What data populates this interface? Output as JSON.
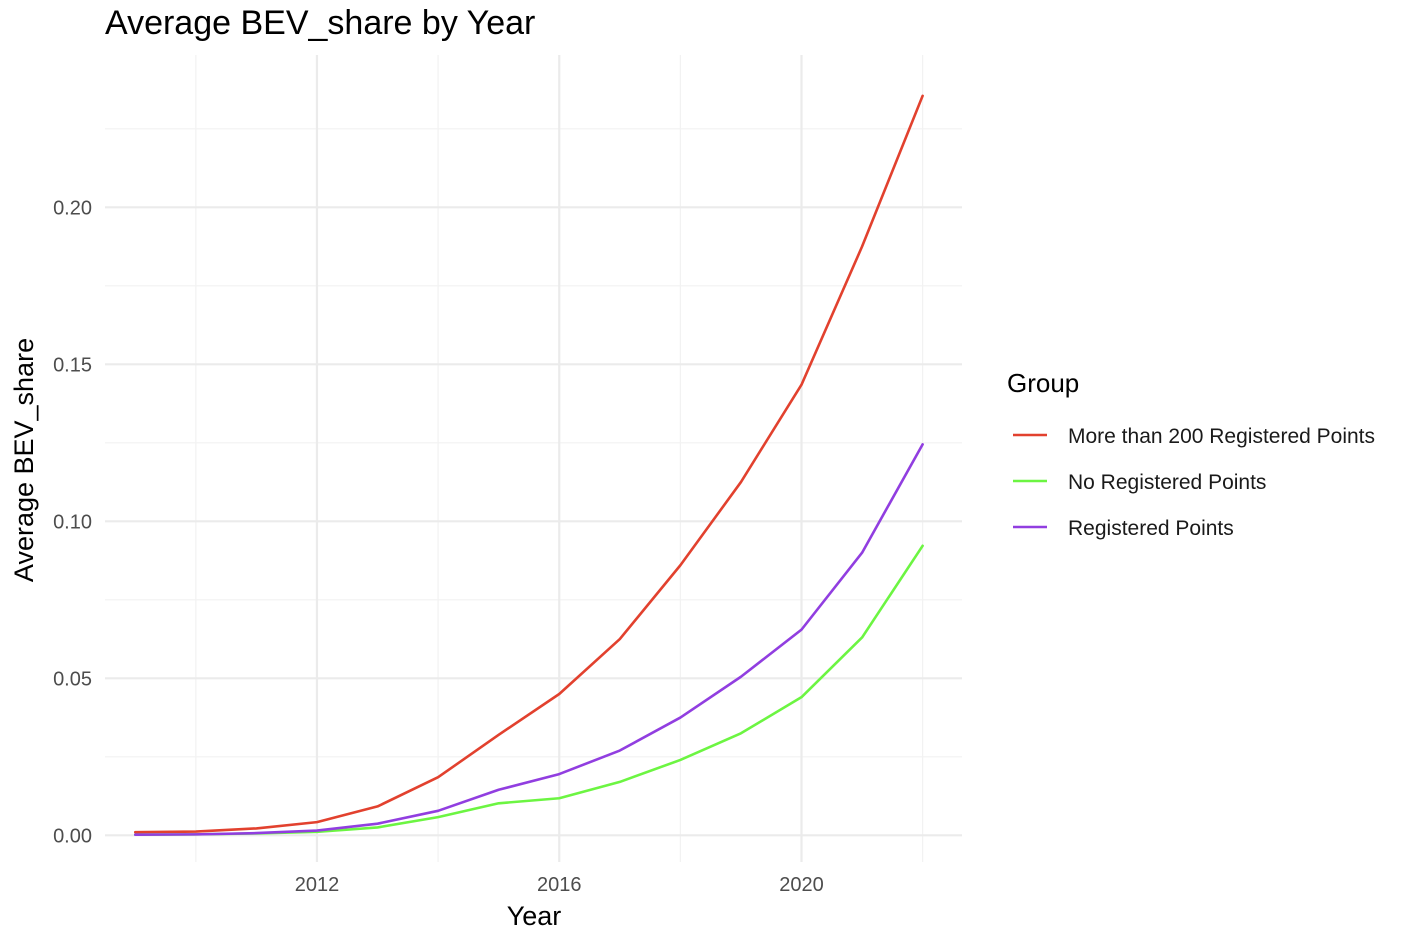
{
  "chart_data": {
    "type": "line",
    "title": "Average BEV_share by Year",
    "xlabel": "Year",
    "ylabel": "Average BEV_share",
    "x": [
      2009,
      2010,
      2011,
      2012,
      2013,
      2014,
      2015,
      2016,
      2017,
      2018,
      2019,
      2020,
      2021,
      2022
    ],
    "xlim": [
      2008.5,
      2022.65
    ],
    "ylim": [
      -0.0085,
      0.2485
    ],
    "x_ticks": [
      {
        "value": 2012,
        "label": "2012"
      },
      {
        "value": 2016,
        "label": "2016"
      },
      {
        "value": 2020,
        "label": "2020"
      }
    ],
    "x_minor_ticks": [
      2010,
      2014,
      2018,
      2022
    ],
    "y_ticks": [
      {
        "value": 0.0,
        "label": "0.00"
      },
      {
        "value": 0.05,
        "label": "0.05"
      },
      {
        "value": 0.1,
        "label": "0.10"
      },
      {
        "value": 0.15,
        "label": "0.15"
      },
      {
        "value": 0.2,
        "label": "0.20"
      }
    ],
    "y_minor_ticks": [
      0.025,
      0.075,
      0.125,
      0.175,
      0.225
    ],
    "grid": true,
    "legend": {
      "title": "Group",
      "placement": "right"
    },
    "series": [
      {
        "name": "More than 200 Registered Points",
        "color": "#e2412e",
        "values": [
          0.001,
          0.0012,
          0.0022,
          0.0042,
          0.0092,
          0.0185,
          0.032,
          0.045,
          0.0625,
          0.086,
          0.1125,
          0.1435,
          0.1875,
          0.2355
        ]
      },
      {
        "name": "No Registered Points",
        "color": "#6cf542",
        "values": [
          0.0002,
          0.0003,
          0.0006,
          0.0011,
          0.0025,
          0.0058,
          0.0102,
          0.0118,
          0.017,
          0.024,
          0.0325,
          0.044,
          0.063,
          0.0922
        ]
      },
      {
        "name": "Registered Points",
        "color": "#913ee0",
        "values": [
          0.0002,
          0.0003,
          0.0007,
          0.0015,
          0.0037,
          0.0078,
          0.0145,
          0.0195,
          0.027,
          0.0375,
          0.0505,
          0.0655,
          0.09,
          0.1245
        ]
      }
    ]
  }
}
